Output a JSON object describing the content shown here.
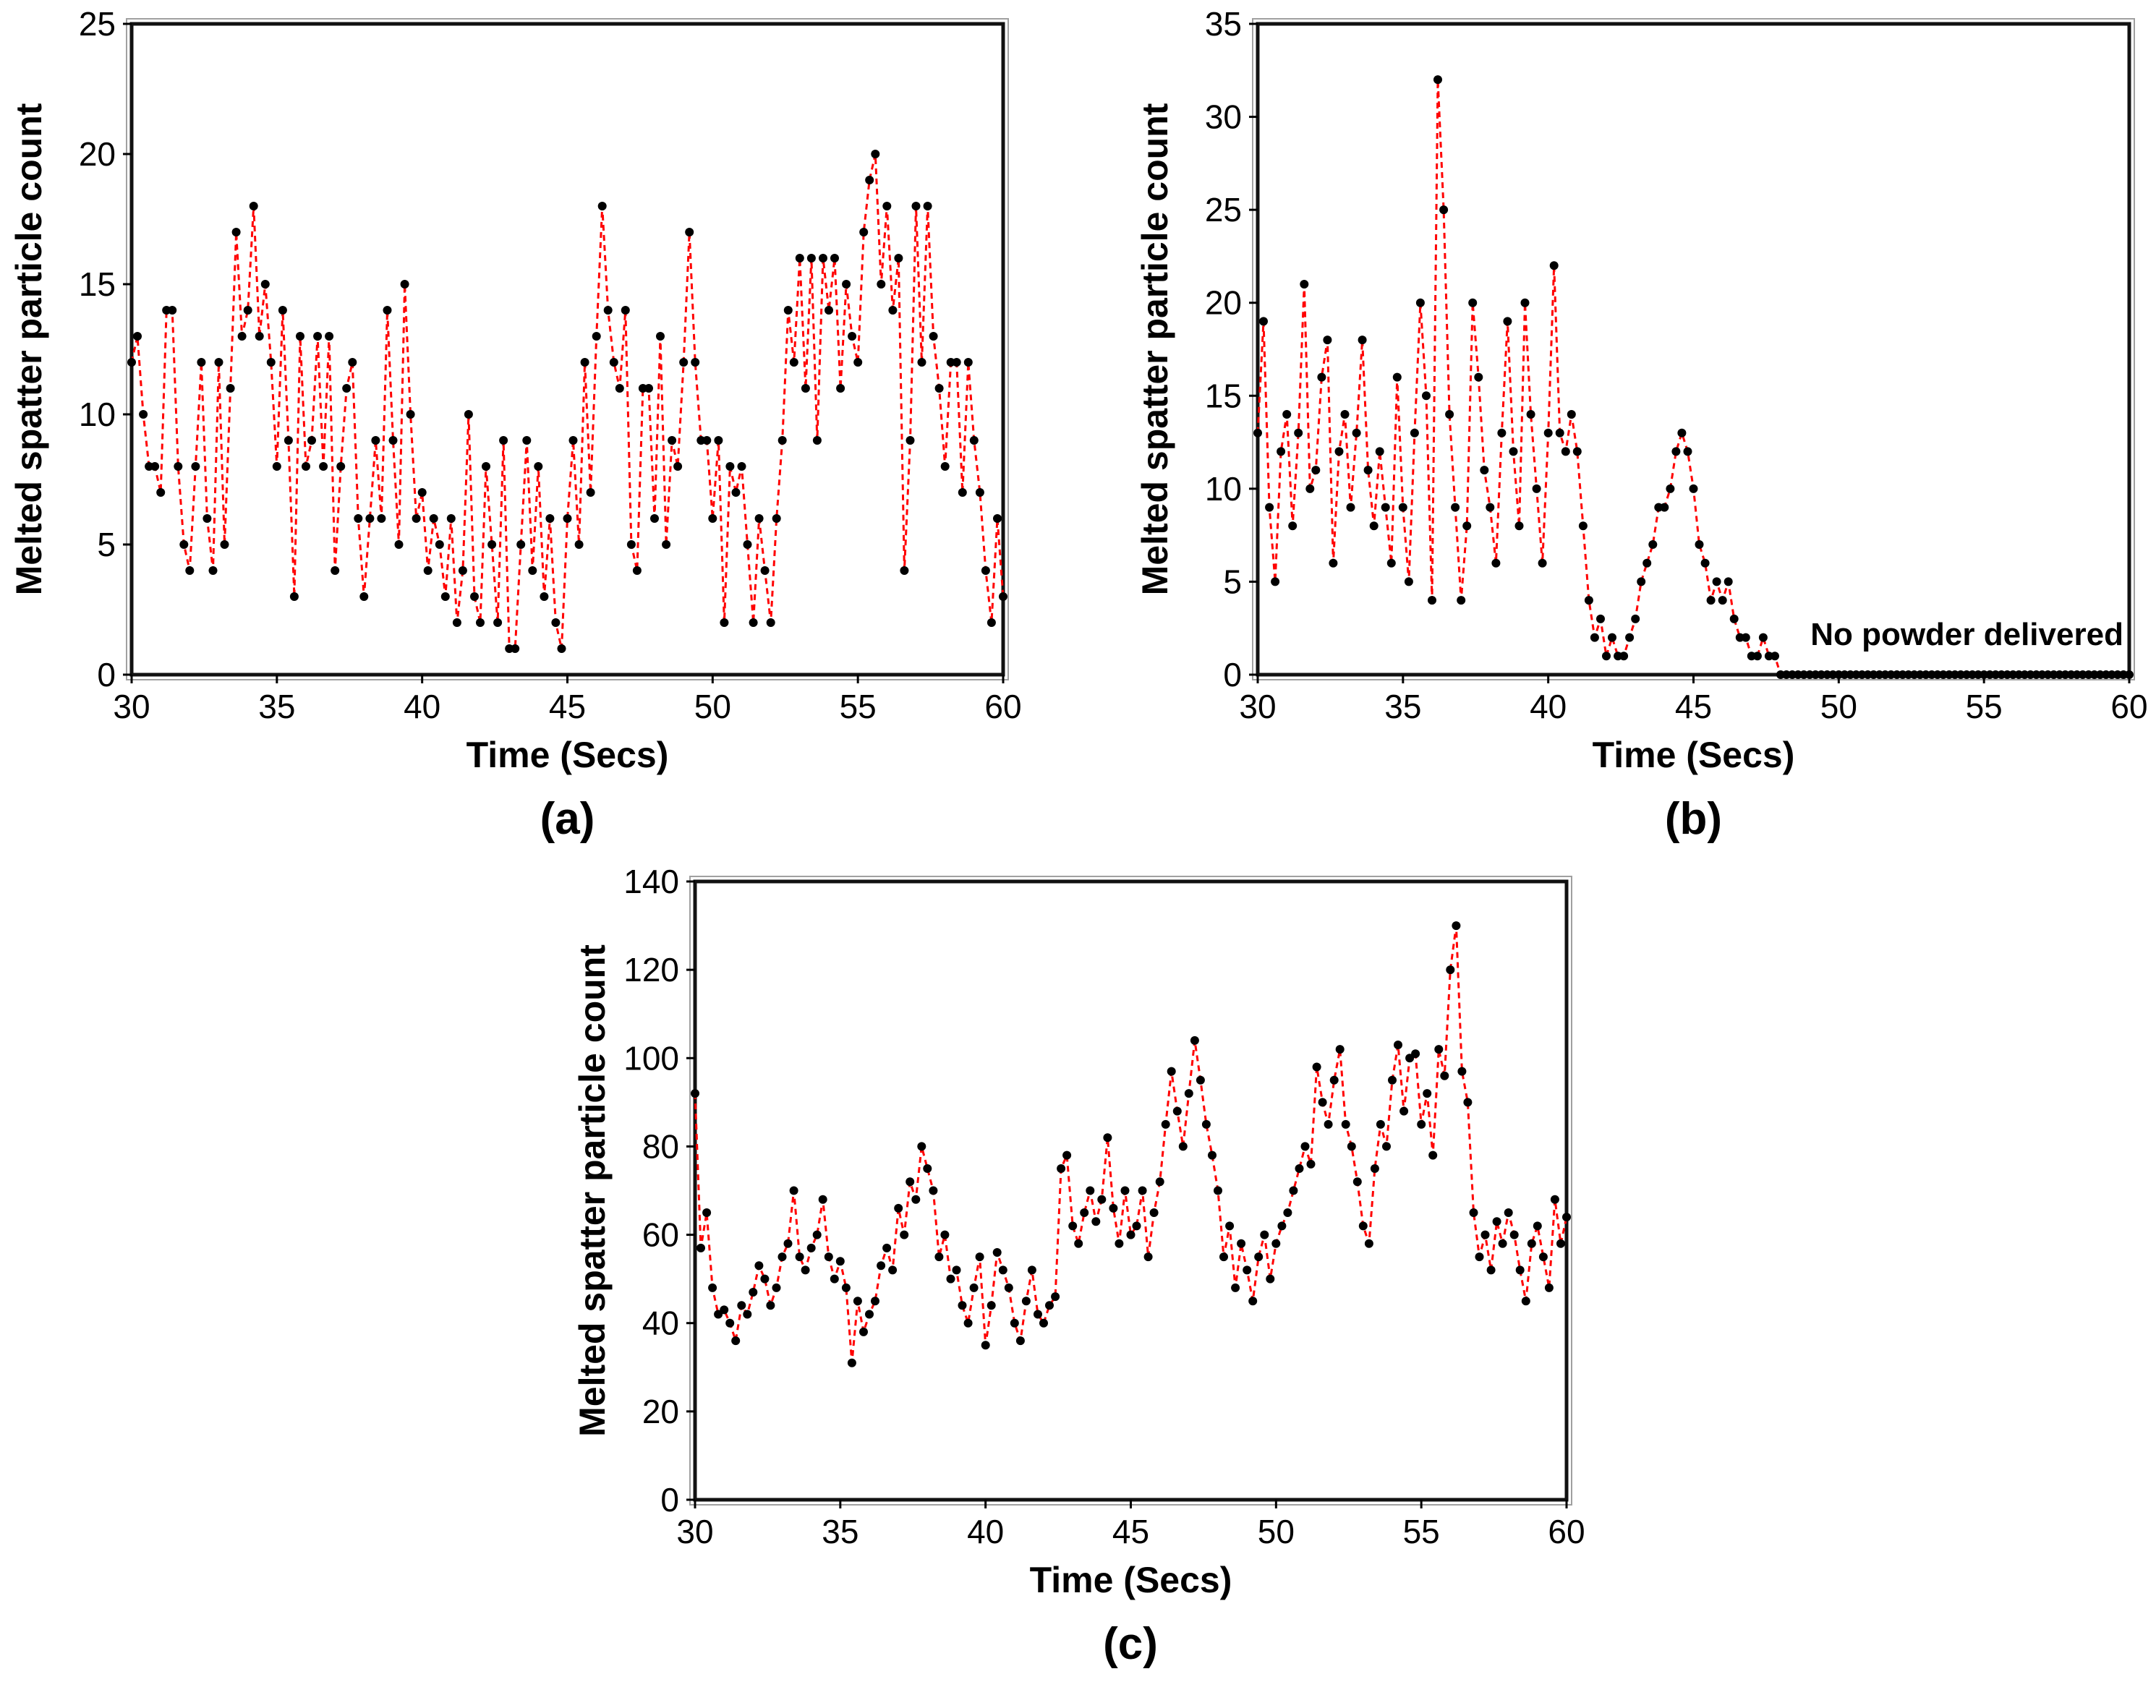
{
  "figure": {
    "captions": {
      "a": "(a)",
      "b": "(b)",
      "c": "(c)"
    }
  },
  "chart_data": [
    {
      "type": "line",
      "caption": "(a)",
      "xlabel": "Time (Secs)",
      "ylabel": "Melted spatter particle count",
      "xlim": [
        30,
        60
      ],
      "ylim": [
        0,
        25
      ],
      "xticks": [
        30,
        35,
        40,
        45,
        50,
        55,
        60
      ],
      "yticks": [
        0,
        5,
        10,
        15,
        20,
        25
      ],
      "grid": false,
      "legend": "none",
      "line_style": "dashed",
      "line_color": "#ff0000",
      "marker_color": "#000000",
      "x_start": 30,
      "x_step": 0.2,
      "values": [
        12,
        13,
        10,
        8,
        8,
        7,
        14,
        14,
        8,
        5,
        4,
        8,
        12,
        6,
        4,
        12,
        5,
        11,
        17,
        13,
        14,
        18,
        13,
        15,
        12,
        8,
        14,
        9,
        3,
        13,
        8,
        9,
        13,
        8,
        13,
        4,
        8,
        11,
        12,
        6,
        3,
        6,
        9,
        6,
        14,
        9,
        5,
        15,
        10,
        6,
        7,
        4,
        6,
        5,
        3,
        6,
        2,
        4,
        10,
        3,
        2,
        8,
        5,
        2,
        9,
        1,
        1,
        5,
        9,
        4,
        8,
        3,
        6,
        2,
        1,
        6,
        9,
        5,
        12,
        7,
        13,
        18,
        14,
        12,
        11,
        14,
        5,
        4,
        11,
        11,
        6,
        13,
        5,
        9,
        8,
        12,
        17,
        12,
        9,
        9,
        6,
        9,
        2,
        8,
        7,
        8,
        5,
        2,
        6,
        4,
        2,
        6,
        9,
        14,
        12,
        16,
        11,
        16,
        9,
        16,
        14,
        16,
        11,
        15,
        13,
        12,
        17,
        19,
        20,
        15,
        18,
        14,
        16,
        4,
        9,
        18,
        12,
        18,
        13,
        11,
        8,
        12,
        12,
        7,
        12,
        9,
        7,
        4,
        2,
        6,
        3
      ]
    },
    {
      "type": "line",
      "caption": "(b)",
      "xlabel": "Time  (Secs)",
      "ylabel": "Melted spatter particle count",
      "xlim": [
        30,
        60
      ],
      "ylim": [
        0,
        35
      ],
      "xticks": [
        30,
        35,
        40,
        45,
        50,
        55,
        60
      ],
      "yticks": [
        0,
        5,
        10,
        15,
        20,
        25,
        30,
        35
      ],
      "grid": false,
      "legend": "none",
      "line_style": "dashed",
      "line_color": "#ff0000",
      "marker_color": "#000000",
      "annotation": {
        "text": "No powder delivered",
        "x": 59.8,
        "y": 1.6,
        "anchor": "end"
      },
      "x_start": 30,
      "x_step": 0.2,
      "values": [
        13,
        19,
        9,
        5,
        12,
        14,
        8,
        13,
        21,
        10,
        11,
        16,
        18,
        6,
        12,
        14,
        9,
        13,
        18,
        11,
        8,
        12,
        9,
        6,
        16,
        9,
        5,
        13,
        20,
        15,
        4,
        32,
        25,
        14,
        9,
        4,
        8,
        20,
        16,
        11,
        9,
        6,
        13,
        19,
        12,
        8,
        20,
        14,
        10,
        6,
        13,
        22,
        13,
        12,
        14,
        12,
        8,
        4,
        2,
        3,
        1,
        2,
        1,
        1,
        2,
        3,
        5,
        6,
        7,
        9,
        9,
        10,
        12,
        13,
        12,
        10,
        7,
        6,
        4,
        5,
        4,
        5,
        3,
        2,
        2,
        1,
        1,
        2,
        1,
        1,
        0,
        0,
        0,
        0,
        0,
        0,
        0,
        0,
        0,
        0,
        0,
        0,
        0,
        0,
        0,
        0,
        0,
        0,
        0,
        0,
        0,
        0,
        0,
        0,
        0,
        0,
        0,
        0,
        0,
        0,
        0,
        0,
        0,
        0,
        0,
        0,
        0,
        0,
        0,
        0,
        0,
        0,
        0,
        0,
        0,
        0,
        0,
        0,
        0,
        0,
        0,
        0,
        0,
        0,
        0,
        0,
        0,
        0,
        0,
        0,
        0
      ]
    },
    {
      "type": "line",
      "caption": "(c)",
      "xlabel": "Time (Secs)",
      "ylabel": "Melted spatter particle count",
      "xlim": [
        30,
        60
      ],
      "ylim": [
        0,
        140
      ],
      "xticks": [
        30,
        35,
        40,
        45,
        50,
        55,
        60
      ],
      "yticks": [
        0,
        20,
        40,
        60,
        80,
        100,
        120,
        140
      ],
      "grid": false,
      "legend": "none",
      "line_style": "dashed",
      "line_color": "#ff0000",
      "marker_color": "#000000",
      "x_start": 30,
      "x_step": 0.2,
      "values": [
        92,
        57,
        65,
        48,
        42,
        43,
        40,
        36,
        44,
        42,
        47,
        53,
        50,
        44,
        48,
        55,
        58,
        70,
        55,
        52,
        57,
        60,
        68,
        55,
        50,
        54,
        48,
        31,
        45,
        38,
        42,
        45,
        53,
        57,
        52,
        66,
        60,
        72,
        68,
        80,
        75,
        70,
        55,
        60,
        50,
        52,
        44,
        40,
        48,
        55,
        35,
        44,
        56,
        52,
        48,
        40,
        36,
        45,
        52,
        42,
        40,
        44,
        46,
        75,
        78,
        62,
        58,
        65,
        70,
        63,
        68,
        82,
        66,
        58,
        70,
        60,
        62,
        70,
        55,
        65,
        72,
        85,
        97,
        88,
        80,
        92,
        104,
        95,
        85,
        78,
        70,
        55,
        62,
        48,
        58,
        52,
        45,
        55,
        60,
        50,
        58,
        62,
        65,
        70,
        75,
        80,
        76,
        98,
        90,
        85,
        95,
        102,
        85,
        80,
        72,
        62,
        58,
        75,
        85,
        80,
        95,
        103,
        88,
        100,
        101,
        85,
        92,
        78,
        102,
        96,
        120,
        130,
        97,
        90,
        65,
        55,
        60,
        52,
        63,
        58,
        65,
        60,
        52,
        45,
        58,
        62,
        55,
        48,
        68,
        58,
        64
      ]
    }
  ]
}
